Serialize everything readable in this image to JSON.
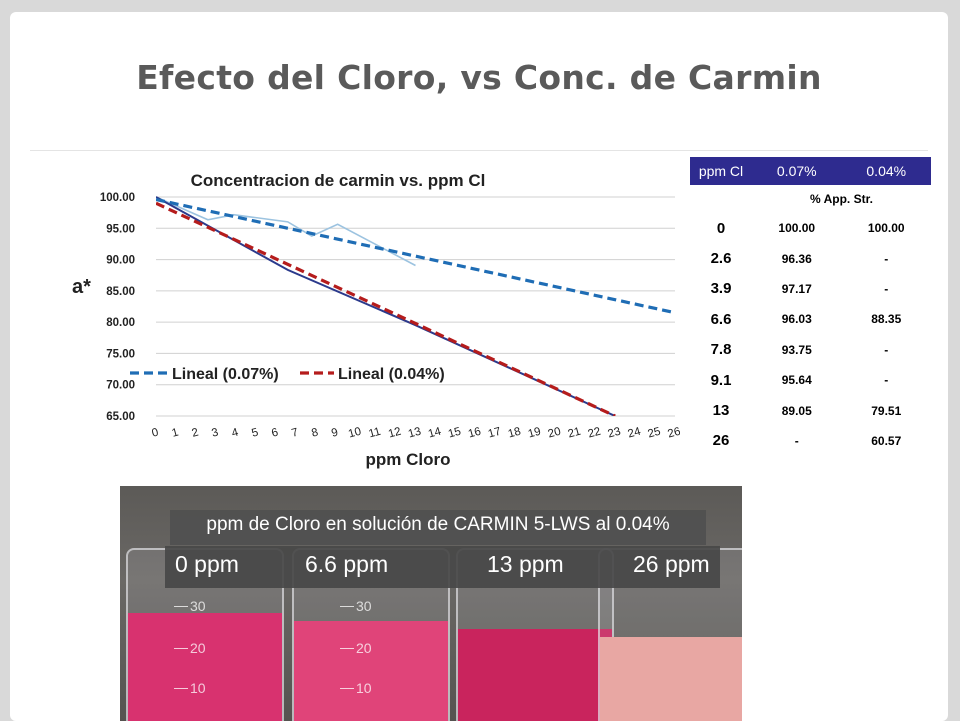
{
  "slide_title": "Efecto del Cloro, vs Conc. de Carmin",
  "colors": {
    "blue_series": "#1f6db5",
    "red_series": "#b51c1c",
    "table_header": "#2e2b8f",
    "measured_blue": "#9cc3e0",
    "measured_red": "#2b3a8c"
  },
  "chart_data": {
    "type": "line",
    "title": "Concentracion de carmin vs. ppm Cl",
    "xlabel": "ppm Cloro",
    "ylabel": "a*",
    "x_ticks": [
      "0",
      "1",
      "2",
      "3",
      "4",
      "5",
      "6",
      "7",
      "8",
      "9",
      "10",
      "11",
      "12",
      "13",
      "14",
      "15",
      "16",
      "17",
      "18",
      "19",
      "20",
      "21",
      "22",
      "23",
      "24",
      "25",
      "26"
    ],
    "y_ticks": [
      "100.00",
      "95.00",
      "90.00",
      "85.00",
      "80.00",
      "75.00",
      "70.00",
      "65.00"
    ],
    "ylim": [
      65,
      100
    ],
    "xlim": [
      0,
      26
    ],
    "grid": true,
    "legend_placement": "middle-left",
    "series": [
      {
        "name": "",
        "style": "solid",
        "color": "#9cc3e0",
        "x": [
          0,
          2.6,
          3.9,
          6.6,
          7.8,
          9.1,
          13
        ],
        "y": [
          100.0,
          96.36,
          97.17,
          96.03,
          93.75,
          95.64,
          89.05
        ]
      },
      {
        "name": "",
        "style": "solid",
        "color": "#2b3a8c",
        "x": [
          0,
          6.6,
          13,
          23
        ],
        "y": [
          100.0,
          88.35,
          79.51,
          65.0
        ]
      },
      {
        "name": "Lineal (0.07%)",
        "style": "dashed",
        "color": "#1f6db5",
        "x": [
          0,
          26
        ],
        "y": [
          99.6,
          81.5
        ]
      },
      {
        "name": "Lineal (0.04%)",
        "style": "dashed",
        "color": "#b51c1c",
        "x": [
          0,
          23
        ],
        "y": [
          99.0,
          65.0
        ]
      }
    ]
  },
  "table": {
    "headers": [
      "ppm Cl",
      "0.07%",
      "0.04%"
    ],
    "subheader": "% App. Str.",
    "rows": [
      [
        "0",
        "100.00",
        "100.00"
      ],
      [
        "2.6",
        "96.36",
        "-"
      ],
      [
        "3.9",
        "97.17",
        "-"
      ],
      [
        "6.6",
        "96.03",
        "88.35"
      ],
      [
        "7.8",
        "93.75",
        "-"
      ],
      [
        "9.1",
        "95.64",
        "-"
      ],
      [
        "13",
        "89.05",
        "79.51"
      ],
      [
        "26",
        "-",
        "60.57"
      ]
    ]
  },
  "photo": {
    "caption": "ppm de Cloro en solución de CARMIN 5-LWS al 0.04%",
    "labels": [
      "0 ppm",
      "6.6 ppm",
      "13 ppm",
      "26 ppm"
    ],
    "graduations": [
      "30",
      "20",
      "10"
    ],
    "liquid_colors": [
      "#d8326f",
      "#e04479",
      "#c9245d",
      "#e8a7a3"
    ]
  }
}
